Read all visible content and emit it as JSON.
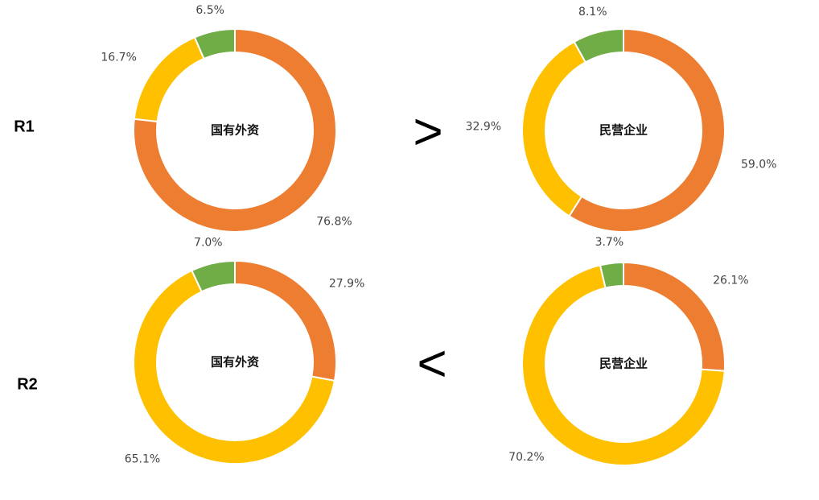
{
  "rows": [
    {
      "label": "R1",
      "comparison": ">"
    },
    {
      "label": "R2",
      "comparison": "<"
    }
  ],
  "chart_data": [
    {
      "type": "donut",
      "center_label": "国有外资",
      "values": [
        76.8,
        16.7,
        6.5
      ],
      "value_labels": [
        "76.8%",
        "16.7%",
        "6.5%"
      ],
      "colors": [
        "#ed7d31",
        "#ffc000",
        "#70ad47"
      ]
    },
    {
      "type": "donut",
      "center_label": "民营企业",
      "values": [
        59.0,
        32.9,
        8.1
      ],
      "value_labels": [
        "59.0%",
        "32.9%",
        "8.1%"
      ],
      "colors": [
        "#ed7d31",
        "#ffc000",
        "#70ad47"
      ]
    },
    {
      "type": "donut",
      "center_label": "国有外资",
      "values": [
        27.9,
        65.1,
        7.0
      ],
      "value_labels": [
        "27.9%",
        "65.1%",
        "7.0%"
      ],
      "colors": [
        "#ed7d31",
        "#ffc000",
        "#70ad47"
      ]
    },
    {
      "type": "donut",
      "center_label": "民营企业",
      "values": [
        26.1,
        70.2,
        3.7
      ],
      "value_labels": [
        "26.1%",
        "70.2%",
        "3.7%"
      ],
      "colors": [
        "#ed7d31",
        "#ffc000",
        "#70ad47"
      ]
    }
  ]
}
